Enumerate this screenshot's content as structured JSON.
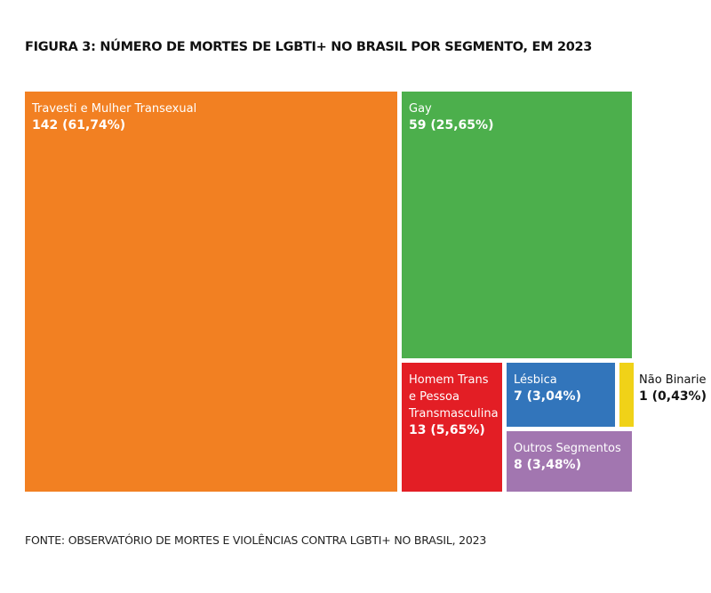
{
  "chart_data": {
    "type": "treemap",
    "title": "FIGURA 3: NÚMERO DE MORTES DE LGBTI+ NO BRASIL POR SEGMENTO, EM 2023",
    "source": "FONTE: OBSERVATÓRIO DE MORTES E VIOLÊNCIAS CONTRA LGBTI+ NO BRASIL, 2023",
    "items": [
      {
        "label": "Travesti e Mulher Transexual",
        "value": 142,
        "value_label": "142 (61,74%)",
        "color": "#f28022"
      },
      {
        "label": "Gay",
        "value": 59,
        "value_label": "59 (25,65%)",
        "color": "#4caf4c"
      },
      {
        "label": "Homem Trans e Pessoa Transmasculina",
        "value": 13,
        "value_label": "13 (5,65%)",
        "color": "#e31e25"
      },
      {
        "label": "Lésbica",
        "value": 7,
        "value_label": "7 (3,04%)",
        "color": "#3275bb"
      },
      {
        "label": "Não Binarie",
        "value": 1,
        "value_label": "1 (0,43%)",
        "color": "#f0d218"
      },
      {
        "label": "Outros Segmentos",
        "value": 8,
        "value_label": "8 (3,48%)",
        "color": "#a276b0"
      }
    ]
  }
}
